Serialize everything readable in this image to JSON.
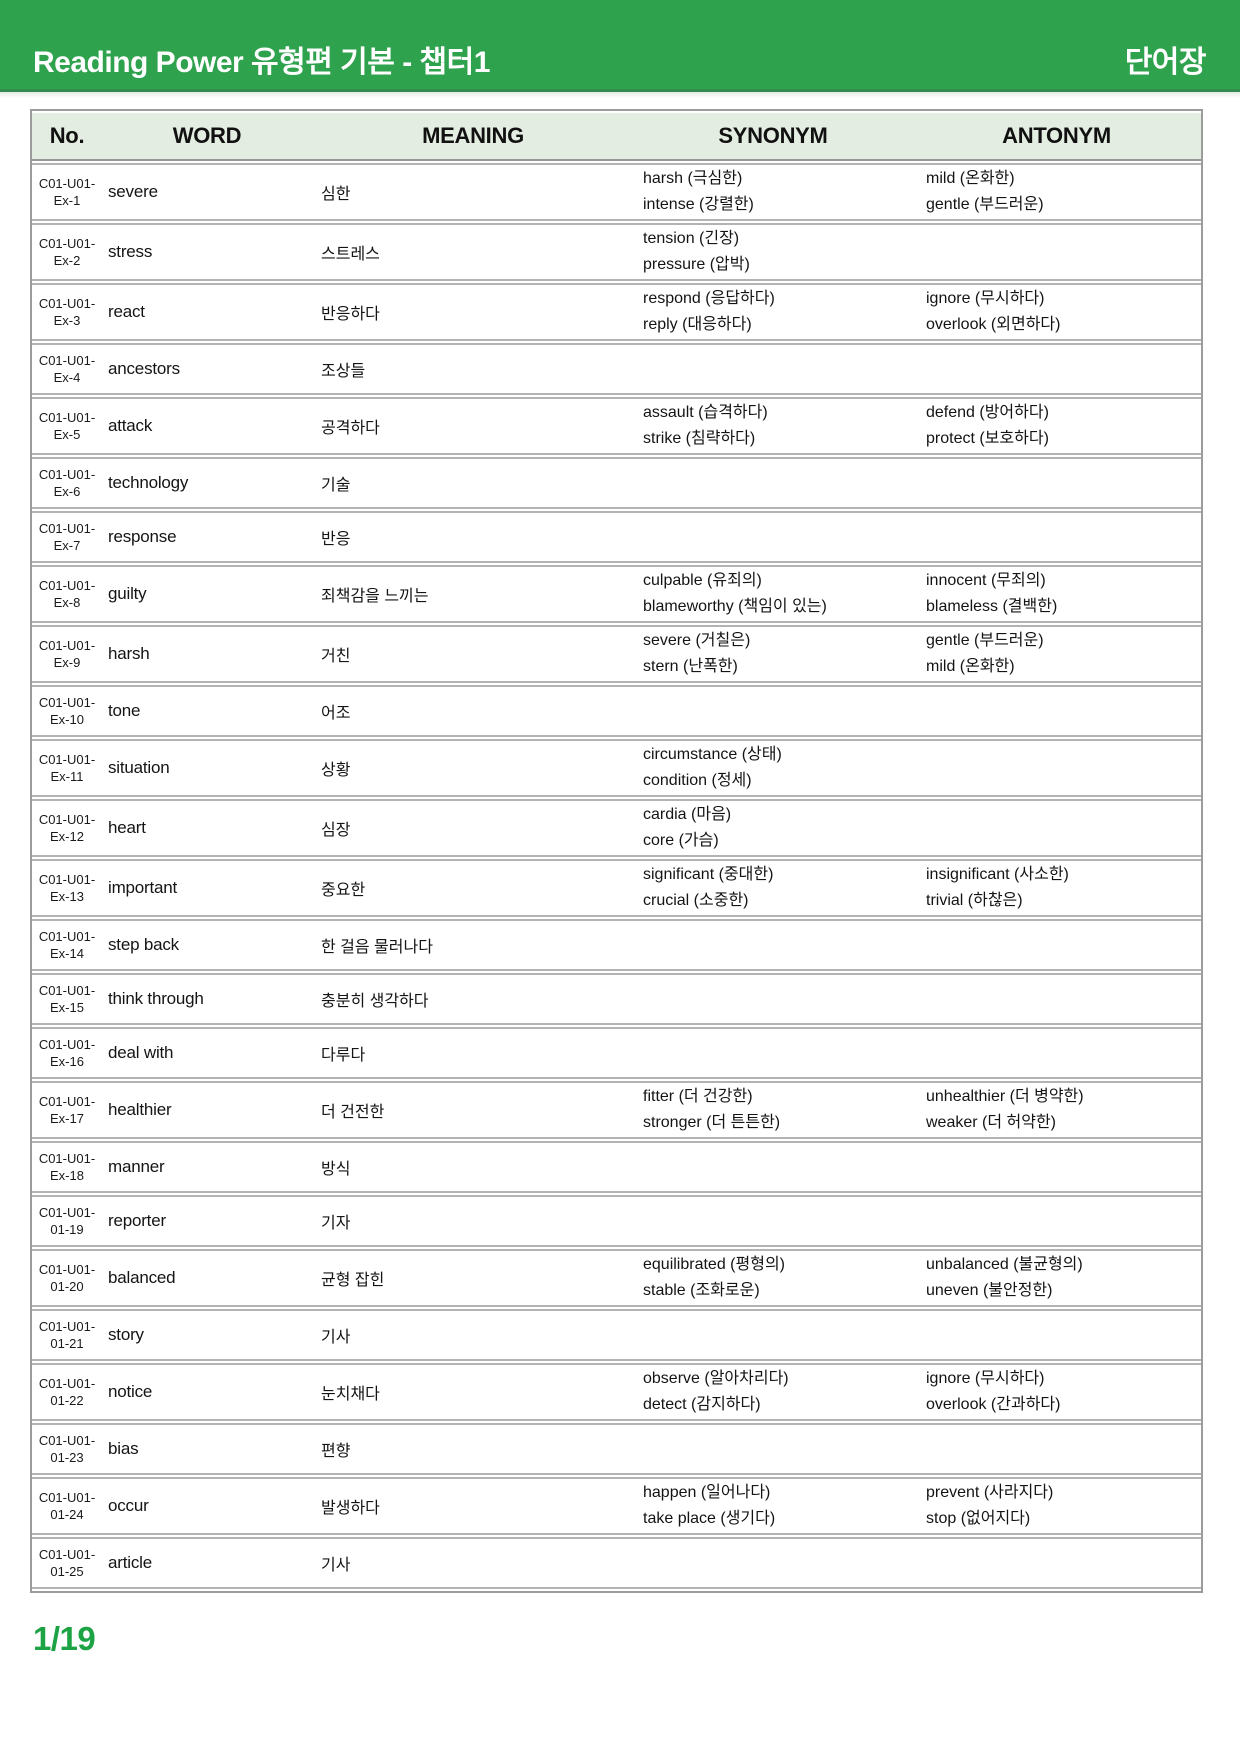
{
  "header": {
    "title": "Reading Power 유형편 기본 - 챕터1",
    "badge": "단어장"
  },
  "colors": {
    "topbar_green": "#2fa24e",
    "topbar_edge_green": "#1f8a40",
    "header_row_bg": "#e4ede1",
    "table_border": "#9c9c9c",
    "row_border": "#b3b3b3",
    "page_number_green": "#1da343"
  },
  "table": {
    "columns": [
      "No.",
      "WORD",
      "MEANING",
      "SYNONYM",
      "ANTONYM"
    ],
    "rows": [
      {
        "no": {
          "line1": "C01-U01-",
          "line2": "Ex-1"
        },
        "word": "severe",
        "meaning": "심한",
        "synonyms": [
          "harsh (극심한)",
          "intense (강렬한)"
        ],
        "antonyms": [
          "mild (온화한)",
          "gentle (부드러운)"
        ]
      },
      {
        "no": {
          "line1": "C01-U01-",
          "line2": "Ex-2"
        },
        "word": "stress",
        "meaning": "스트레스",
        "synonyms": [
          "tension (긴장)",
          "pressure (압박)"
        ],
        "antonyms": []
      },
      {
        "no": {
          "line1": "C01-U01-",
          "line2": "Ex-3"
        },
        "word": "react",
        "meaning": "반응하다",
        "synonyms": [
          "respond (응답하다)",
          "reply (대응하다)"
        ],
        "antonyms": [
          "ignore (무시하다)",
          "overlook (외면하다)"
        ]
      },
      {
        "no": {
          "line1": "C01-U01-",
          "line2": "Ex-4"
        },
        "word": "ancestors",
        "meaning": "조상들",
        "synonyms": [],
        "antonyms": []
      },
      {
        "no": {
          "line1": "C01-U01-",
          "line2": "Ex-5"
        },
        "word": "attack",
        "meaning": "공격하다",
        "synonyms": [
          "assault (습격하다)",
          "strike (침략하다)"
        ],
        "antonyms": [
          "defend (방어하다)",
          "protect (보호하다)"
        ]
      },
      {
        "no": {
          "line1": "C01-U01-",
          "line2": "Ex-6"
        },
        "word": "technology",
        "meaning": "기술",
        "synonyms": [],
        "antonyms": []
      },
      {
        "no": {
          "line1": "C01-U01-",
          "line2": "Ex-7"
        },
        "word": "response",
        "meaning": "반응",
        "synonyms": [],
        "antonyms": []
      },
      {
        "no": {
          "line1": "C01-U01-",
          "line2": "Ex-8"
        },
        "word": "guilty",
        "meaning": "죄책감을 느끼는",
        "synonyms": [
          "culpable (유죄의)",
          "blameworthy (책임이 있는)"
        ],
        "antonyms": [
          "innocent (무죄의)",
          "blameless (결백한)"
        ]
      },
      {
        "no": {
          "line1": "C01-U01-",
          "line2": "Ex-9"
        },
        "word": "harsh",
        "meaning": "거친",
        "synonyms": [
          "severe (거칠은)",
          "stern (난폭한)"
        ],
        "antonyms": [
          "gentle (부드러운)",
          "mild (온화한)"
        ]
      },
      {
        "no": {
          "line1": "C01-U01-",
          "line2": "Ex-10"
        },
        "word": "tone",
        "meaning": "어조",
        "synonyms": [],
        "antonyms": []
      },
      {
        "no": {
          "line1": "C01-U01-",
          "line2": "Ex-11"
        },
        "word": "situation",
        "meaning": "상황",
        "synonyms": [
          "circumstance (상태)",
          "condition (정세)"
        ],
        "antonyms": []
      },
      {
        "no": {
          "line1": "C01-U01-",
          "line2": "Ex-12"
        },
        "word": "heart",
        "meaning": "심장",
        "synonyms": [
          "cardia (마음)",
          "core (가슴)"
        ],
        "antonyms": []
      },
      {
        "no": {
          "line1": "C01-U01-",
          "line2": "Ex-13"
        },
        "word": "important",
        "meaning": "중요한",
        "synonyms": [
          "significant (중대한)",
          "crucial (소중한)"
        ],
        "antonyms": [
          "insignificant (사소한)",
          "trivial (하찮은)"
        ]
      },
      {
        "no": {
          "line1": "C01-U01-",
          "line2": "Ex-14"
        },
        "word": "step back",
        "meaning": "한 걸음 물러나다",
        "synonyms": [],
        "antonyms": []
      },
      {
        "no": {
          "line1": "C01-U01-",
          "line2": "Ex-15"
        },
        "word": "think through",
        "meaning": "충분히 생각하다",
        "synonyms": [],
        "antonyms": []
      },
      {
        "no": {
          "line1": "C01-U01-",
          "line2": "Ex-16"
        },
        "word": "deal with",
        "meaning": "다루다",
        "synonyms": [],
        "antonyms": []
      },
      {
        "no": {
          "line1": "C01-U01-",
          "line2": "Ex-17"
        },
        "word": "healthier",
        "meaning": "더 건전한",
        "synonyms": [
          "fitter (더 건강한)",
          "stronger (더 튼튼한)"
        ],
        "antonyms": [
          "unhealthier (더 병약한)",
          "weaker (더 허약한)"
        ]
      },
      {
        "no": {
          "line1": "C01-U01-",
          "line2": "Ex-18"
        },
        "word": "manner",
        "meaning": "방식",
        "synonyms": [],
        "antonyms": []
      },
      {
        "no": {
          "line1": "C01-U01-",
          "line2": "01-19"
        },
        "word": "reporter",
        "meaning": "기자",
        "synonyms": [],
        "antonyms": []
      },
      {
        "no": {
          "line1": "C01-U01-",
          "line2": "01-20"
        },
        "word": "balanced",
        "meaning": "균형 잡힌",
        "synonyms": [
          "equilibrated (평형의)",
          "stable (조화로운)"
        ],
        "antonyms": [
          "unbalanced (불균형의)",
          "uneven (불안정한)"
        ]
      },
      {
        "no": {
          "line1": "C01-U01-",
          "line2": "01-21"
        },
        "word": "story",
        "meaning": "기사",
        "synonyms": [],
        "antonyms": []
      },
      {
        "no": {
          "line1": "C01-U01-",
          "line2": "01-22"
        },
        "word": "notice",
        "meaning": "눈치채다",
        "synonyms": [
          "observe (알아차리다)",
          "detect (감지하다)"
        ],
        "antonyms": [
          "ignore (무시하다)",
          "overlook (간과하다)"
        ]
      },
      {
        "no": {
          "line1": "C01-U01-",
          "line2": "01-23"
        },
        "word": "bias",
        "meaning": "편향",
        "synonyms": [],
        "antonyms": []
      },
      {
        "no": {
          "line1": "C01-U01-",
          "line2": "01-24"
        },
        "word": "occur",
        "meaning": "발생하다",
        "synonyms": [
          "happen (일어나다)",
          "take place (생기다)"
        ],
        "antonyms": [
          "prevent (사라지다)",
          "stop (없어지다)"
        ]
      },
      {
        "no": {
          "line1": "C01-U01-",
          "line2": "01-25"
        },
        "word": "article",
        "meaning": "기사",
        "synonyms": [],
        "antonyms": []
      }
    ]
  },
  "footer": {
    "page": "1/19"
  }
}
